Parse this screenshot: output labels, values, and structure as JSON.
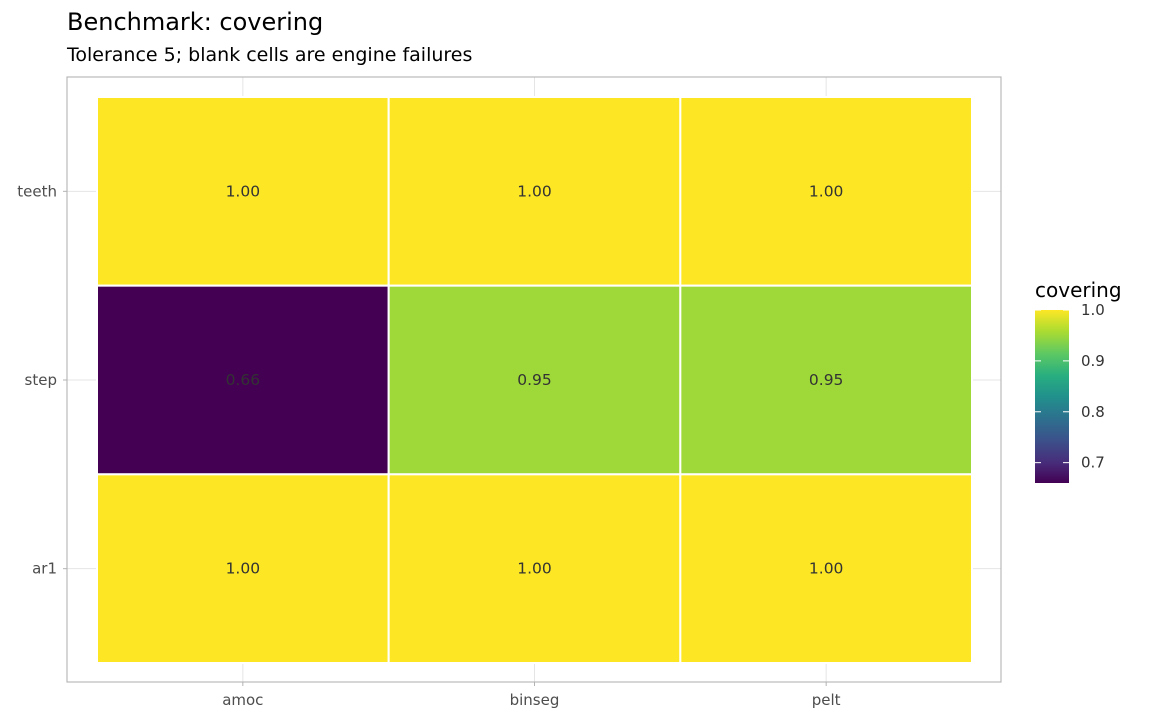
{
  "chart_data": {
    "type": "heatmap",
    "title": "Benchmark: covering",
    "subtitle": "Tolerance 5; blank cells are engine failures",
    "x_categories": [
      "amoc",
      "binseg",
      "pelt"
    ],
    "y_categories": [
      "teeth",
      "step",
      "ar1"
    ],
    "values": [
      [
        1.0,
        1.0,
        1.0
      ],
      [
        0.66,
        0.95,
        0.95
      ],
      [
        1.0,
        1.0,
        1.0
      ]
    ],
    "cell_labels": [
      [
        "1.00",
        "1.00",
        "1.00"
      ],
      [
        "0.66",
        "0.95",
        "0.95"
      ],
      [
        "1.00",
        "1.00",
        "1.00"
      ]
    ],
    "legend": {
      "title": "covering",
      "placement": "right",
      "ticks": [
        1.0,
        0.9,
        0.8,
        0.7
      ],
      "tick_labels": [
        "1.0",
        "0.9",
        "0.8",
        "0.7"
      ],
      "range": [
        0.66,
        1.0
      ]
    },
    "colormap": "viridis",
    "colors": {
      "low": "#440154",
      "high": "#fde725",
      "panel_border": "#b3b3b3",
      "grid": "#e5e5e5",
      "cell_border": "#ffffff"
    },
    "grid": true
  }
}
